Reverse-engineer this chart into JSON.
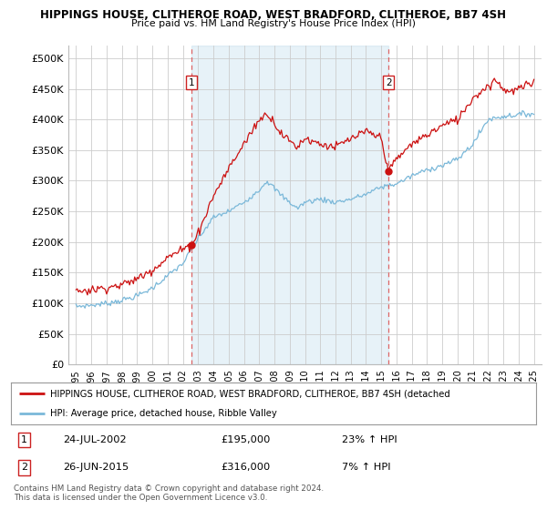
{
  "title": "HIPPINGS HOUSE, CLITHEROE ROAD, WEST BRADFORD, CLITHEROE, BB7 4SH",
  "subtitle": "Price paid vs. HM Land Registry's House Price Index (HPI)",
  "ylabel_ticks": [
    "£0",
    "£50K",
    "£100K",
    "£150K",
    "£200K",
    "£250K",
    "£300K",
    "£350K",
    "£400K",
    "£450K",
    "£500K"
  ],
  "ytick_values": [
    0,
    50000,
    100000,
    150000,
    200000,
    250000,
    300000,
    350000,
    400000,
    450000,
    500000
  ],
  "ylim": [
    0,
    520000
  ],
  "sale1_x": 2002.56,
  "sale1_y": 195000,
  "sale1_label": "24-JUL-2002",
  "sale1_price": "£195,000",
  "sale1_hpi": "23% ↑ HPI",
  "sale2_x": 2015.48,
  "sale2_y": 316000,
  "sale2_label": "26-JUN-2015",
  "sale2_price": "£316,000",
  "sale2_hpi": "7% ↑ HPI",
  "hpi_color": "#7ab8d9",
  "price_color": "#cc1111",
  "vline_color": "#dd6666",
  "fill_color": "#daedf7",
  "grid_color": "#cccccc",
  "background_color": "#ffffff",
  "legend_text_1": "HIPPINGS HOUSE, CLITHEROE ROAD, WEST BRADFORD, CLITHEROE, BB7 4SH (detached",
  "legend_text_2": "HPI: Average price, detached house, Ribble Valley",
  "footer": "Contains HM Land Registry data © Crown copyright and database right 2024.\nThis data is licensed under the Open Government Licence v3.0.",
  "xmin": 1994.5,
  "xmax": 2025.5
}
